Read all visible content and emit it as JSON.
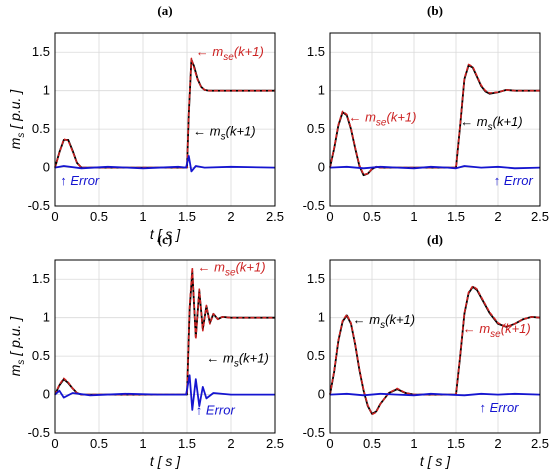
{
  "chart_data": [
    {
      "panel": "(a)",
      "type": "line",
      "xlabel": "t [ s ]",
      "ylabel": "m_s [ p.u. ]",
      "xlim": [
        0,
        2.5
      ],
      "ylim": [
        -0.5,
        1.75
      ],
      "xticks": [
        "0",
        "0.5",
        "1",
        "1.5",
        "2",
        "2.5"
      ],
      "yticks": [
        "-0.5",
        "0",
        "0.5",
        "1",
        "1.5"
      ],
      "grid": true,
      "series": [
        {
          "name": "ms(k+1)",
          "color": "#000000",
          "x": [
            0,
            0.05,
            0.1,
            0.15,
            0.2,
            0.25,
            0.3,
            0.35,
            0.4,
            1.5,
            1.52,
            1.55,
            1.58,
            1.62,
            1.66,
            1.7,
            1.75,
            1.8,
            1.9,
            2.0,
            2.5
          ],
          "y": [
            0,
            0.2,
            0.36,
            0.36,
            0.22,
            0.06,
            0.0,
            0.0,
            0.0,
            0.0,
            0.7,
            1.4,
            1.32,
            1.15,
            1.05,
            1.01,
            1.0,
            1.0,
            1.0,
            1.0,
            1.0
          ]
        },
        {
          "name": "mse(k+1)",
          "color": "#cc2222",
          "dashed": true,
          "x": [
            0,
            0.05,
            0.1,
            0.15,
            0.2,
            0.25,
            0.3,
            0.35,
            0.4,
            1.5,
            1.52,
            1.55,
            1.58,
            1.62,
            1.66,
            1.7,
            1.75,
            1.8,
            1.9,
            2.0,
            2.5
          ],
          "y": [
            0,
            0.19,
            0.37,
            0.35,
            0.21,
            0.06,
            0.0,
            0.0,
            0.0,
            0.0,
            0.72,
            1.42,
            1.3,
            1.14,
            1.05,
            1.01,
            1.0,
            1.0,
            1.0,
            1.0,
            1.0
          ]
        },
        {
          "name": "Error",
          "color": "#1515d0",
          "x": [
            0,
            0.1,
            0.3,
            0.6,
            1.0,
            1.4,
            1.49,
            1.52,
            1.55,
            1.6,
            1.7,
            2.0,
            2.5
          ],
          "y": [
            0,
            0.02,
            -0.01,
            0.01,
            -0.01,
            0.01,
            0.0,
            0.15,
            -0.05,
            0.02,
            0.0,
            0.01,
            0.0
          ]
        }
      ],
      "annotations": [
        {
          "text": "← m",
          "sub": "se",
          "suffix": "(k+1)",
          "color": "#cc2222",
          "x": 1.6,
          "y": 1.45
        },
        {
          "text": "← m",
          "sub": "s",
          "suffix": "(k+1)",
          "color": "#000000",
          "x": 1.57,
          "y": 0.42
        },
        {
          "text": "↑ Error",
          "sub": "",
          "suffix": "",
          "color": "#1515d0",
          "x": 0.06,
          "y": -0.23
        }
      ]
    },
    {
      "panel": "(b)",
      "type": "line",
      "xlabel": "",
      "ylabel": "",
      "xlim": [
        0,
        2.5
      ],
      "ylim": [
        -0.5,
        1.75
      ],
      "xticks": [
        "0",
        "0.5",
        "1",
        "1.5",
        "2",
        "2.5"
      ],
      "yticks": [
        "-0.5",
        "0",
        "0.5",
        "1",
        "1.5"
      ],
      "grid": true,
      "series": [
        {
          "name": "ms(k+1)",
          "color": "#000000",
          "x": [
            0,
            0.05,
            0.1,
            0.15,
            0.2,
            0.25,
            0.3,
            0.35,
            0.4,
            0.45,
            0.5,
            0.55,
            0.6,
            0.7,
            1.5,
            1.55,
            1.6,
            1.65,
            1.7,
            1.75,
            1.8,
            1.85,
            1.9,
            2.0,
            2.1,
            2.2,
            2.3,
            2.5
          ],
          "y": [
            0,
            0.25,
            0.55,
            0.72,
            0.68,
            0.5,
            0.25,
            0.02,
            -0.1,
            -0.08,
            -0.02,
            0.01,
            0.0,
            0.0,
            0.0,
            0.55,
            1.15,
            1.33,
            1.3,
            1.18,
            1.06,
            0.99,
            0.96,
            0.98,
            1.01,
            1.0,
            1.0,
            1.0
          ]
        },
        {
          "name": "mse(k+1)",
          "color": "#cc2222",
          "dashed": true,
          "x": [
            0,
            0.05,
            0.1,
            0.15,
            0.2,
            0.25,
            0.3,
            0.35,
            0.4,
            0.45,
            0.5,
            0.55,
            0.6,
            0.7,
            1.5,
            1.55,
            1.6,
            1.65,
            1.7,
            1.75,
            1.8,
            1.85,
            1.9,
            2.0,
            2.1,
            2.2,
            2.3,
            2.5
          ],
          "y": [
            0,
            0.26,
            0.56,
            0.73,
            0.69,
            0.51,
            0.26,
            0.03,
            -0.09,
            -0.08,
            -0.02,
            0.01,
            0.0,
            0.0,
            0.0,
            0.56,
            1.16,
            1.34,
            1.31,
            1.19,
            1.07,
            1.0,
            0.97,
            0.98,
            1.01,
            1.0,
            1.0,
            1.0
          ]
        },
        {
          "name": "Error",
          "color": "#1515d0",
          "x": [
            0,
            0.2,
            0.4,
            0.6,
            0.8,
            1.0,
            1.2,
            1.4,
            1.5,
            1.6,
            1.8,
            2.0,
            2.2,
            2.5
          ],
          "y": [
            0,
            0.01,
            -0.01,
            0.01,
            0.0,
            -0.01,
            0.01,
            0.0,
            -0.01,
            0.02,
            0.0,
            0.01,
            -0.01,
            0.0
          ]
        }
      ],
      "annotations": [
        {
          "text": "← m",
          "sub": "se",
          "suffix": "(k+1)",
          "color": "#cc2222",
          "x": 0.22,
          "y": 0.6
        },
        {
          "text": "← m",
          "sub": "s",
          "suffix": "(k+1)",
          "color": "#000000",
          "x": 1.55,
          "y": 0.54
        },
        {
          "text": "↑ Error",
          "sub": "",
          "suffix": "",
          "color": "#1515d0",
          "x": 1.95,
          "y": -0.23
        }
      ]
    },
    {
      "panel": "(c)",
      "type": "line",
      "xlabel": "t [ s ]",
      "ylabel": "m_s [ p.u. ]",
      "xlim": [
        0,
        2.5
      ],
      "ylim": [
        -0.5,
        1.75
      ],
      "xticks": [
        "0",
        "0.5",
        "1",
        "1.5",
        "2",
        "2.5"
      ],
      "yticks": [
        "-0.5",
        "0",
        "0.5",
        "1",
        "1.5"
      ],
      "grid": true,
      "series": [
        {
          "name": "ms(k+1)",
          "color": "#000000",
          "x": [
            0,
            0.05,
            0.1,
            0.15,
            0.2,
            0.25,
            0.3,
            0.4,
            1.5,
            1.53,
            1.56,
            1.6,
            1.64,
            1.68,
            1.72,
            1.76,
            1.8,
            1.85,
            1.9,
            2.0,
            2.5
          ],
          "y": [
            0,
            0.12,
            0.2,
            0.15,
            0.08,
            0.02,
            0.0,
            0.0,
            0.0,
            1.1,
            1.6,
            0.75,
            1.35,
            0.85,
            1.15,
            0.93,
            1.05,
            0.98,
            1.01,
            1.0,
            1.0
          ]
        },
        {
          "name": "mse(k+1)",
          "color": "#cc2222",
          "dashed": true,
          "x": [
            0,
            0.05,
            0.1,
            0.15,
            0.2,
            0.25,
            0.3,
            0.4,
            1.5,
            1.53,
            1.56,
            1.6,
            1.64,
            1.68,
            1.72,
            1.76,
            1.8,
            1.85,
            1.9,
            2.0,
            2.5
          ],
          "y": [
            0,
            0.13,
            0.21,
            0.16,
            0.08,
            0.02,
            0.0,
            0.0,
            0.0,
            1.15,
            1.65,
            0.72,
            1.37,
            0.83,
            1.16,
            0.92,
            1.05,
            0.98,
            1.01,
            1.0,
            1.0
          ]
        },
        {
          "name": "Error",
          "color": "#1515d0",
          "x": [
            0,
            0.05,
            0.1,
            0.2,
            0.4,
            0.8,
            1.2,
            1.49,
            1.53,
            1.56,
            1.6,
            1.64,
            1.68,
            1.72,
            1.8,
            2.0,
            2.5
          ],
          "y": [
            0,
            0.05,
            -0.04,
            0.02,
            -0.01,
            0.01,
            0.0,
            0.0,
            0.25,
            -0.2,
            0.2,
            -0.15,
            0.1,
            -0.05,
            0.02,
            0.0,
            0.0
          ]
        }
      ],
      "annotations": [
        {
          "text": "← m",
          "sub": "se",
          "suffix": "(k+1)",
          "color": "#cc2222",
          "x": 1.62,
          "y": 1.6
        },
        {
          "text": "← m",
          "sub": "s",
          "suffix": "(k+1)",
          "color": "#000000",
          "x": 1.72,
          "y": 0.42
        },
        {
          "text": "↑ Error",
          "sub": "",
          "suffix": "",
          "color": "#1515d0",
          "x": 1.6,
          "y": -0.26
        }
      ]
    },
    {
      "panel": "(d)",
      "type": "line",
      "xlabel": "t [ s ]",
      "ylabel": "",
      "xlim": [
        0,
        2.5
      ],
      "ylim": [
        -0.5,
        1.75
      ],
      "xticks": [
        "0",
        "0.5",
        "1",
        "1.5",
        "2",
        "2.5"
      ],
      "yticks": [
        "-0.5",
        "0",
        "0.5",
        "1",
        "1.5"
      ],
      "grid": true,
      "series": [
        {
          "name": "ms(k+1)",
          "color": "#000000",
          "x": [
            0,
            0.05,
            0.1,
            0.15,
            0.2,
            0.25,
            0.3,
            0.35,
            0.4,
            0.45,
            0.5,
            0.55,
            0.6,
            0.7,
            0.8,
            0.9,
            1.0,
            1.5,
            1.55,
            1.6,
            1.65,
            1.7,
            1.75,
            1.8,
            1.9,
            2.0,
            2.1,
            2.2,
            2.3,
            2.4,
            2.5
          ],
          "y": [
            0,
            0.3,
            0.7,
            0.95,
            1.03,
            0.92,
            0.65,
            0.32,
            0.05,
            -0.15,
            -0.25,
            -0.22,
            -0.12,
            0.02,
            0.07,
            0.02,
            0.0,
            0.0,
            0.5,
            1.05,
            1.32,
            1.4,
            1.36,
            1.26,
            1.06,
            0.92,
            0.88,
            0.92,
            0.98,
            1.01,
            1.0
          ]
        },
        {
          "name": "mse(k+1)",
          "color": "#cc2222",
          "dashed": true,
          "x": [
            0,
            0.05,
            0.1,
            0.15,
            0.2,
            0.25,
            0.3,
            0.35,
            0.4,
            0.45,
            0.5,
            0.55,
            0.6,
            0.7,
            0.8,
            0.9,
            1.0,
            1.5,
            1.55,
            1.6,
            1.65,
            1.7,
            1.75,
            1.8,
            1.9,
            2.0,
            2.1,
            2.2,
            2.3,
            2.4,
            2.5
          ],
          "y": [
            0,
            0.31,
            0.71,
            0.96,
            1.04,
            0.93,
            0.66,
            0.33,
            0.06,
            -0.14,
            -0.26,
            -0.23,
            -0.12,
            0.02,
            0.08,
            0.02,
            0.0,
            0.0,
            0.51,
            1.06,
            1.33,
            1.41,
            1.37,
            1.27,
            1.07,
            0.93,
            0.88,
            0.92,
            0.98,
            1.01,
            1.0
          ]
        },
        {
          "name": "Error",
          "color": "#1515d0",
          "x": [
            0,
            0.2,
            0.4,
            0.6,
            0.8,
            1.0,
            1.2,
            1.4,
            1.6,
            1.8,
            2.0,
            2.2,
            2.5
          ],
          "y": [
            0,
            0.01,
            -0.01,
            0.01,
            0.0,
            -0.01,
            0.01,
            0.0,
            -0.01,
            0.01,
            0.0,
            0.01,
            0.0
          ]
        }
      ],
      "annotations": [
        {
          "text": "← m",
          "sub": "s",
          "suffix": "(k+1)",
          "color": "#000000",
          "x": 0.27,
          "y": 0.92
        },
        {
          "text": "← m",
          "sub": "se",
          "suffix": "(k+1)",
          "color": "#cc2222",
          "x": 1.58,
          "y": 0.8
        },
        {
          "text": "↑ Error",
          "sub": "",
          "suffix": "",
          "color": "#1515d0",
          "x": 1.78,
          "y": -0.23
        }
      ]
    }
  ]
}
